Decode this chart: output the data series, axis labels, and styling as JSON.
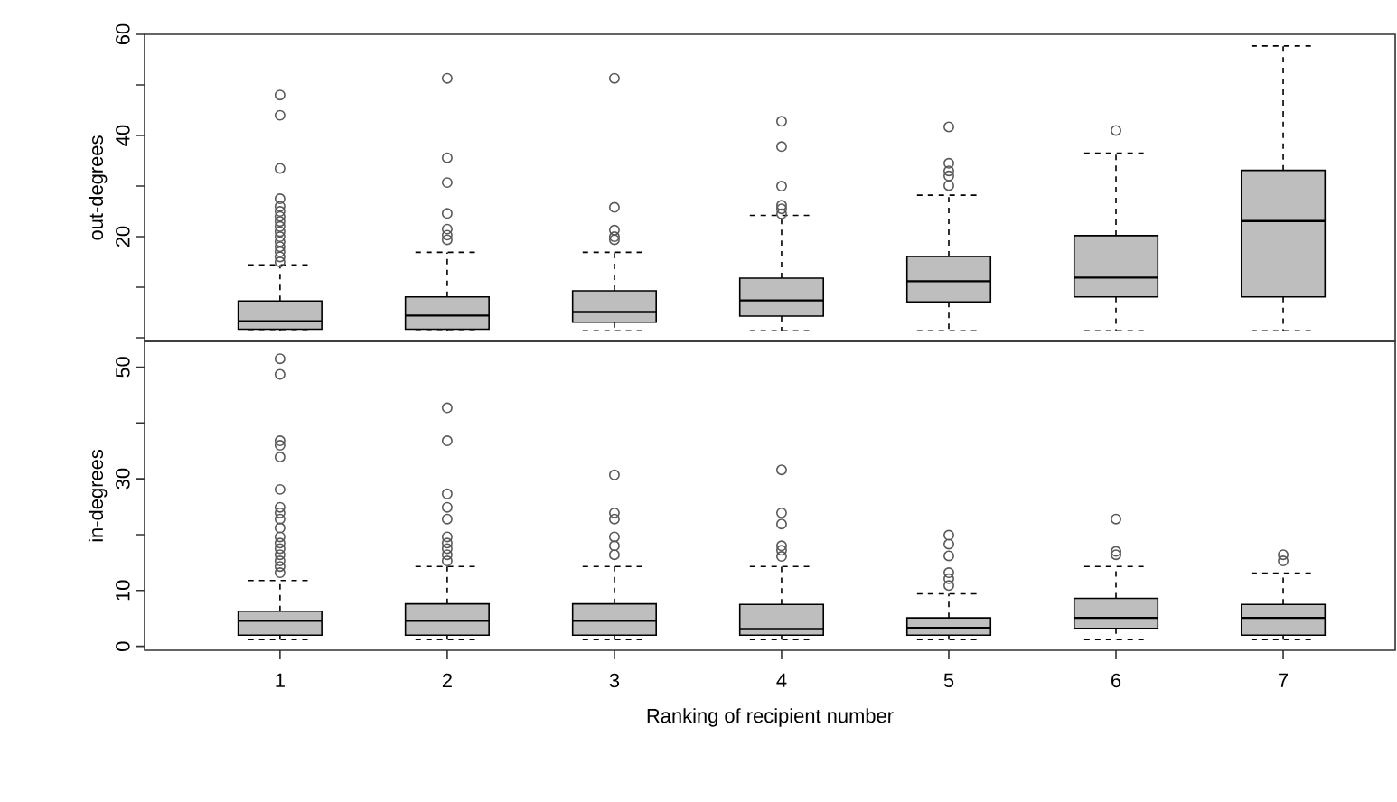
{
  "chart_data": [
    {
      "type": "box",
      "ylabel": "out-degrees",
      "categories": [
        "1",
        "2",
        "3",
        "4",
        "5",
        "6",
        "7"
      ],
      "color": "#bebebe",
      "tick_labels": "y",
      "ylim": [
        -0.7,
        60
      ],
      "yticks": [
        {
          "value": 0,
          "label": null
        },
        {
          "value": 10,
          "label": null
        },
        20,
        {
          "value": 30,
          "label": null
        },
        40,
        {
          "value": 50,
          "label": null
        },
        60
      ],
      "boxes": [
        {
          "low": 1.4,
          "q1": 1.7,
          "median": 3.3,
          "q3": 7.3,
          "high": 14.4,
          "outliers": [
            15,
            16,
            17,
            18,
            19,
            20,
            21,
            22,
            23,
            24,
            25,
            26,
            27.5,
            33.5,
            44,
            48
          ]
        },
        {
          "low": 1.4,
          "q1": 1.7,
          "median": 4.4,
          "q3": 8.1,
          "high": 16.9,
          "outliers": [
            19.4,
            20.3,
            21.5,
            24.6,
            30.7,
            35.6,
            51.3
          ]
        },
        {
          "low": 1.4,
          "q1": 3.1,
          "median": 5.1,
          "q3": 9.3,
          "high": 16.9,
          "outliers": [
            19.4,
            20,
            21.3,
            25.8,
            51.3
          ]
        },
        {
          "low": 1.4,
          "q1": 4.3,
          "median": 7.4,
          "q3": 11.8,
          "high": 24.2,
          "outliers": [
            24.5,
            25.5,
            26.2,
            30,
            37.8,
            42.8
          ]
        },
        {
          "low": 1.4,
          "q1": 7.1,
          "median": 11.2,
          "q3": 16.1,
          "high": 28.2,
          "outliers": [
            30.1,
            32,
            33,
            34.5,
            41.7
          ]
        },
        {
          "low": 1.4,
          "q1": 8.1,
          "median": 11.9,
          "q3": 20.2,
          "high": 36.5,
          "outliers": [
            41
          ]
        },
        {
          "low": 1.4,
          "q1": 8.1,
          "median": 23.1,
          "q3": 33.1,
          "high": 57.7
        }
      ]
    },
    {
      "type": "box",
      "ylabel": "in-degrees",
      "xlabel": "Ranking of recipient number",
      "categories": [
        "1",
        "2",
        "3",
        "4",
        "5",
        "6",
        "7"
      ],
      "color": "#bebebe",
      "ylim": [
        -0.7,
        54.6
      ],
      "yticks": [
        0,
        10,
        {
          "value": 20,
          "label": null
        },
        30,
        {
          "value": 40,
          "label": null
        },
        50
      ],
      "boxes": [
        {
          "low": 1.2,
          "q1": 2.0,
          "median": 4.6,
          "q3": 6.3,
          "high": 11.8,
          "outliers": [
            13.2,
            14.3,
            15.3,
            16.4,
            17.5,
            18.5,
            19.6,
            21.2,
            22.8,
            23.9,
            24.9,
            28.1,
            33.9,
            36,
            36.8,
            48.7,
            51.5
          ]
        },
        {
          "low": 1.2,
          "q1": 2.0,
          "median": 4.6,
          "q3": 7.6,
          "high": 14.3,
          "outliers": [
            15.3,
            16.4,
            17.5,
            18.5,
            19.6,
            22.8,
            24.9,
            27.3,
            36.8,
            42.7
          ]
        },
        {
          "low": 1.2,
          "q1": 2.0,
          "median": 4.6,
          "q3": 7.6,
          "high": 14.3,
          "outliers": [
            16.4,
            18,
            19.6,
            22.8,
            23.9,
            30.7
          ]
        },
        {
          "low": 1.2,
          "q1": 2.0,
          "median": 3.1,
          "q3": 7.5,
          "high": 14.3,
          "outliers": [
            16.1,
            17.2,
            18,
            21.9,
            23.9,
            31.6
          ]
        },
        {
          "low": 1.2,
          "q1": 2.0,
          "median": 3.3,
          "q3": 5.1,
          "high": 9.4,
          "outliers": [
            10.9,
            12.1,
            13.2,
            16.2,
            18.3,
            19.9
          ]
        },
        {
          "low": 1.2,
          "q1": 3.2,
          "median": 5.1,
          "q3": 8.6,
          "high": 14.3,
          "outliers": [
            16.4,
            17,
            22.8
          ]
        },
        {
          "low": 1.2,
          "q1": 2.0,
          "median": 5.1,
          "q3": 7.5,
          "high": 13.1,
          "outliers": [
            15.3,
            16.4
          ]
        }
      ]
    }
  ]
}
